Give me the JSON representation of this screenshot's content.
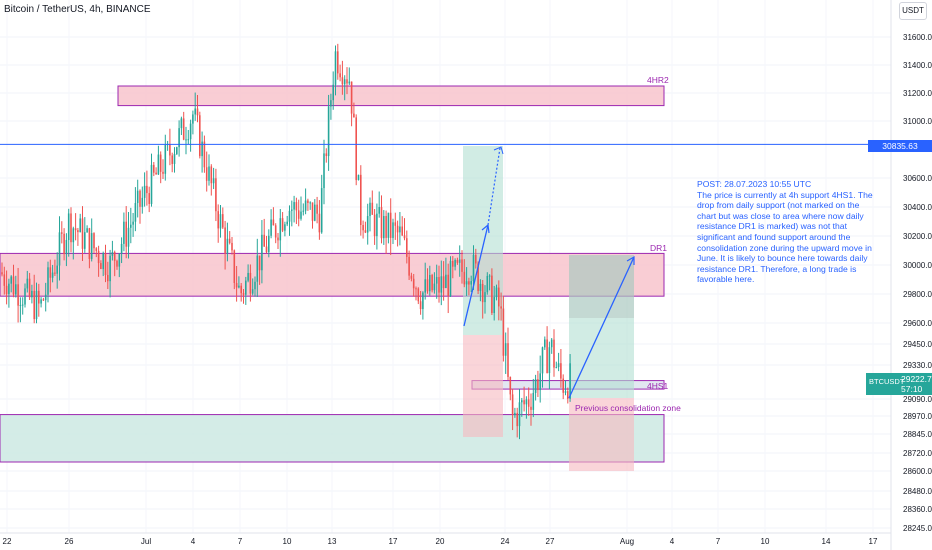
{
  "header": {
    "title": "Bitcoin / TetherUS, 4h, BINANCE",
    "currency": "USDT"
  },
  "annotation": {
    "text": "POST: 28.07.2023 10:55 UTC\nThe price is currently at 4h support 4HS1. The drop from daily support (not marked on the chart but was close to area where now daily resistance DR1 is marked) was not that significant and found support around the consolidation zone during the upward move in June. It is likely to bounce here towards daily resistance DR1. Therefore, a long trade is favorable here."
  },
  "zones": {
    "hr2_label": "4HR2",
    "dr1_label": "DR1",
    "hs1_label": "4HS1",
    "consolidation_label": "Previous consolidation zone"
  },
  "price_tags": {
    "line_price": "30835.63",
    "symbol": "BTCUSDT",
    "last_price": "29222.75",
    "countdown": "57:10"
  },
  "colors": {
    "up": "#26a69a",
    "down": "#ef5350",
    "resistance_fill": "#f8c4cc",
    "support_fill": "#cce9e3",
    "zone_border": "#9c27b0",
    "line": "#2962ff",
    "annotation_text": "#2962ff"
  },
  "chart_data": {
    "type": "candlestick",
    "symbol": "BTCUSDT",
    "timeframe": "4h",
    "ylim": [
      28200,
      31800
    ],
    "y_ticks": [
      "31600.00",
      "31400.00",
      "31200.00",
      "31000.00",
      "30600.00",
      "30400.00",
      "30200.00",
      "30000.00",
      "29800.00",
      "29600.00",
      "29450.00",
      "29330.00",
      "29090.00",
      "28970.00",
      "28845.00",
      "28720.00",
      "28600.00",
      "28480.00",
      "28360.00",
      "28245.00"
    ],
    "x_ticks": [
      "22",
      "26",
      "Jul",
      "4",
      "7",
      "10",
      "13",
      "17",
      "20",
      "24",
      "27",
      "Aug",
      "4",
      "7",
      "10",
      "14",
      "17"
    ],
    "horizontal_line": 30835.63,
    "zones": [
      {
        "name": "4HR2",
        "low": 31110,
        "high": 31250,
        "kind": "resistance"
      },
      {
        "name": "DR1",
        "low": 29785,
        "high": 30080,
        "kind": "resistance"
      },
      {
        "name": "4HS1",
        "low": 29160,
        "high": 29220,
        "kind": "support"
      },
      {
        "name": "Previous consolidation zone",
        "low": 28660,
        "high": 28980,
        "kind": "support"
      }
    ],
    "series": [
      {
        "x": "Jun 22",
        "close": 29950
      },
      {
        "x": "Jun 26",
        "close": 30300
      },
      {
        "x": "Jul 1",
        "close": 30500
      },
      {
        "x": "Jul 4",
        "close": 30750
      },
      {
        "x": "Jul 7",
        "close": 30300
      },
      {
        "x": "Jul 10",
        "close": 30400
      },
      {
        "x": "Jul 13",
        "close": 31300
      },
      {
        "x": "Jul 17",
        "close": 30200
      },
      {
        "x": "Jul 20",
        "close": 29950
      },
      {
        "x": "Jul 24",
        "close": 29150
      },
      {
        "x": "Jul 27",
        "close": 29220
      }
    ],
    "last_price": 29222.75
  }
}
